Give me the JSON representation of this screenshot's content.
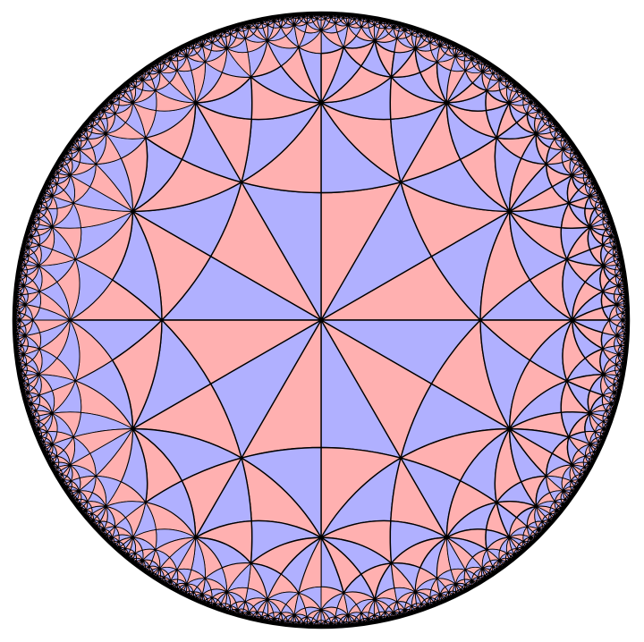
{
  "diagram": {
    "kind": "hyperbolic triangle tiling in Poincaré disk",
    "central_vertex_order": 6,
    "outer_vertex_order": 4,
    "edge_color": "#000000",
    "colors": {
      "pink": "#ffb0b0",
      "blue": "#b0b0ff",
      "background": "#ffffff"
    },
    "legend": null
  }
}
